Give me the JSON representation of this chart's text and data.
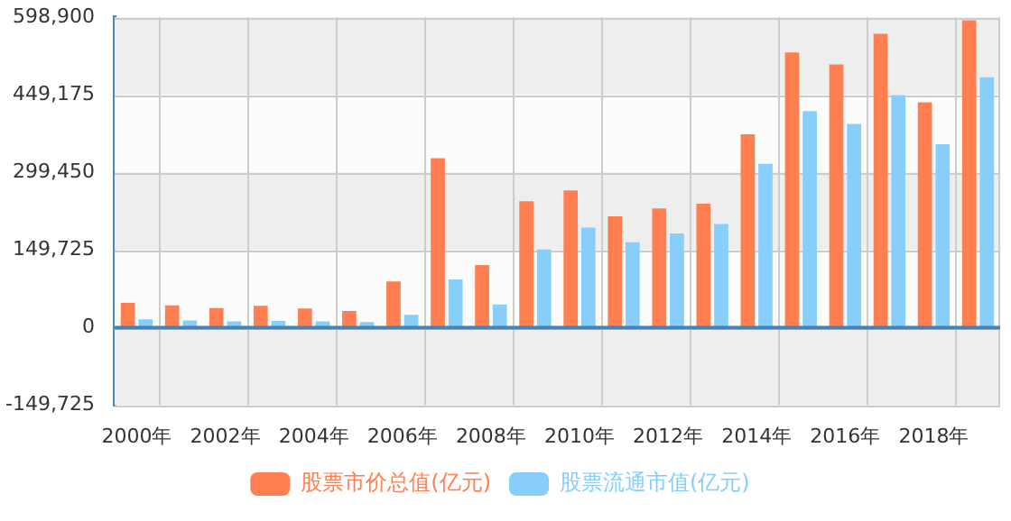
{
  "chart_data": {
    "type": "bar",
    "categories": [
      "2000年",
      null,
      "2002年",
      null,
      "2004年",
      null,
      "2006年",
      null,
      "2008年",
      null,
      "2010年",
      null,
      "2012年",
      null,
      "2014年",
      null,
      "2016年",
      null,
      "2018年",
      null
    ],
    "series": [
      {
        "name": "股票市价总值(亿元)",
        "color": "#ff7f50",
        "values": [
          48000,
          43000,
          38000,
          42000,
          37000,
          32000,
          89000,
          327000,
          121000,
          244000,
          265000,
          215000,
          230000,
          239000,
          373000,
          531000,
          508000,
          567000,
          435000,
          593000
        ]
      },
      {
        "name": "股票流通市值(亿元)",
        "color": "#87cefa",
        "values": [
          16000,
          14000,
          12000,
          13000,
          12000,
          11000,
          25000,
          93000,
          45000,
          151000,
          193000,
          165000,
          182000,
          200000,
          316000,
          418000,
          393000,
          449000,
          354000,
          483000
        ]
      }
    ],
    "ylim": [
      -149725,
      598900
    ],
    "yticks": [
      {
        "value": -149725,
        "label": "-149,725"
      },
      0,
      {
        "value": 149725,
        "label": "149,725"
      },
      {
        "value": 299450,
        "label": "299,450"
      },
      {
        "value": 449175,
        "label": "449,175"
      },
      {
        "value": 598900,
        "label": "598,900"
      }
    ],
    "grid": true,
    "ref_lines": [
      {
        "axis": "y",
        "value": 0,
        "color": "#4682b4"
      }
    ],
    "legend": "bottom"
  }
}
